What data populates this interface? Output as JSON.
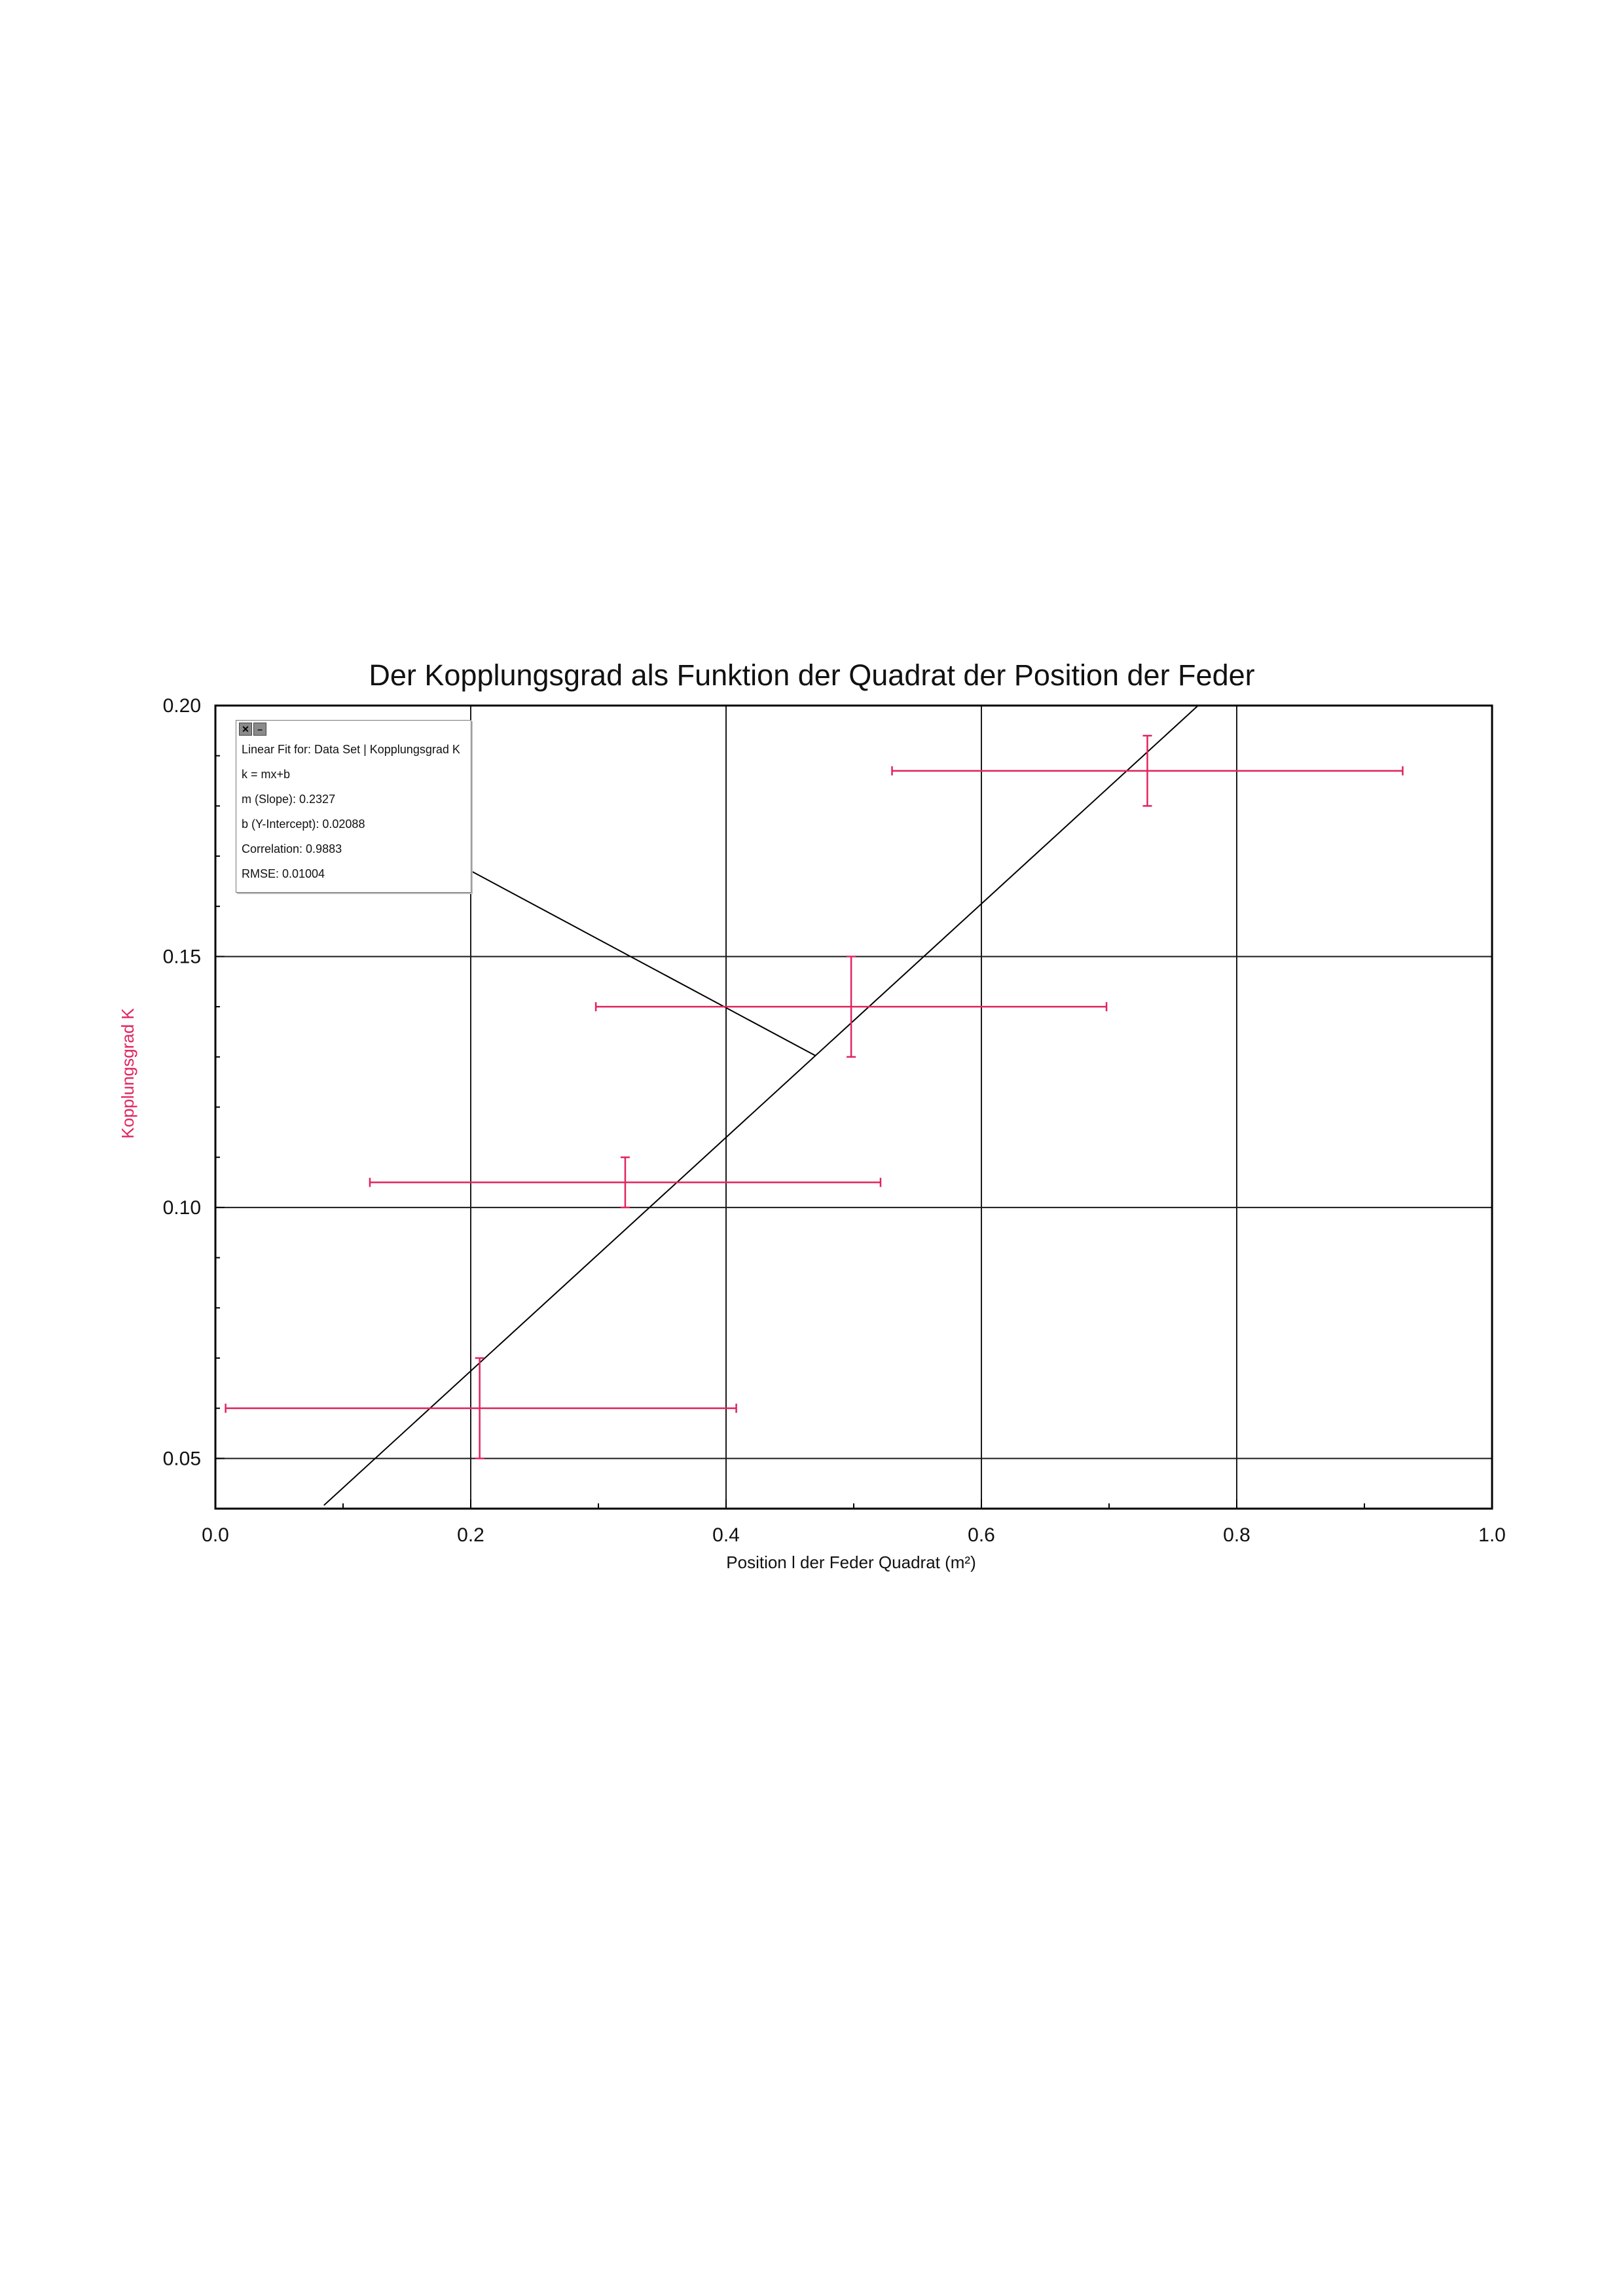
{
  "chart_data": {
    "type": "scatter",
    "title": "Der Kopplungsgrad als Funktion der Quadrat der Position der Feder",
    "xlabel": "Position l der Feder Quadrat (m²)",
    "ylabel": "Kopplungsgrad K",
    "xlim": [
      0.0,
      1.0
    ],
    "ylim": [
      0.04,
      0.2
    ],
    "x_ticks": [
      "0.0",
      "0.2",
      "0.4",
      "0.6",
      "0.8",
      "1.0"
    ],
    "y_ticks": [
      "0.05",
      "0.10",
      "0.15",
      "0.20"
    ],
    "grid": true,
    "colors": {
      "data": "#e0245e",
      "fit": "#000000",
      "ylabel": "#e0245e"
    },
    "points": [
      {
        "x": 0.207,
        "y": 0.06,
        "x_err_low": 0.008,
        "x_err_high": 0.408,
        "y_err_low": 0.05,
        "y_err_high": 0.07
      },
      {
        "x": 0.321,
        "y": 0.105,
        "x_err_low": 0.121,
        "x_err_high": 0.521,
        "y_err_low": 0.1,
        "y_err_high": 0.11
      },
      {
        "x": 0.498,
        "y": 0.14,
        "x_err_low": 0.298,
        "x_err_high": 0.698,
        "y_err_low": 0.13,
        "y_err_high": 0.15
      },
      {
        "x": 0.73,
        "y": 0.187,
        "x_err_low": 0.53,
        "x_err_high": 0.93,
        "y_err_low": 0.18,
        "y_err_high": 0.194
      }
    ],
    "fit": {
      "slope": 0.2327,
      "intercept": 0.02088,
      "x_range": [
        0.085,
        0.77
      ]
    },
    "fit_box": {
      "title": "Linear Fit for: Data Set | Kopplungsgrad K",
      "equation": "k = mx+b",
      "slope": "m (Slope): 0.2327",
      "intercept": "b (Y-Intercept): 0.02088",
      "correlation": "Correlation: 0.9883",
      "rmse": "RMSE: 0.01004"
    }
  },
  "fit_box_buttons": {
    "close": "✕",
    "minimize": "–"
  }
}
